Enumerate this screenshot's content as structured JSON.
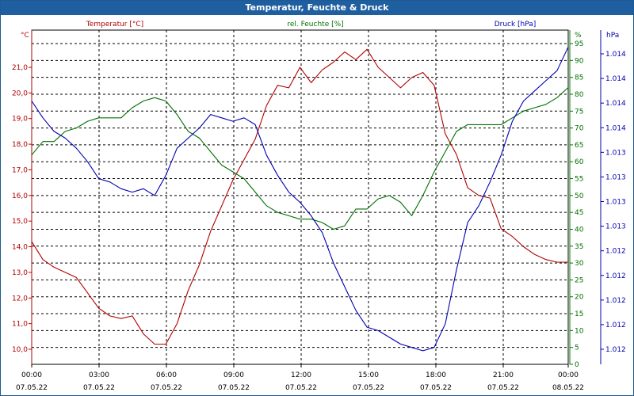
{
  "window": {
    "title": "Temperatur, Feuchte & Druck"
  },
  "chart_data": {
    "type": "line",
    "title": "Temperatur, Feuchte & Druck",
    "colors": {
      "temperature": "#b00000",
      "humidity": "#007000",
      "pressure": "#0000b0",
      "grid": "#000000"
    },
    "grid": true,
    "axes": {
      "left": {
        "unit_label": "°C",
        "header": "Temperatur [°C]",
        "range": [
          9.5,
          22.5
        ],
        "ticks": [
          "10,0",
          "11,0",
          "12,0",
          "13,0",
          "14,0",
          "15,0",
          "16,0",
          "17,0",
          "18,0",
          "19,0",
          "20,0",
          "21,0"
        ]
      },
      "middle": {
        "unit_label": "%",
        "header": "rel. Feuchte [%]",
        "range": [
          0,
          99
        ],
        "ticks": [
          "0",
          "5",
          "10",
          "15",
          "20",
          "25",
          "30",
          "35",
          "40",
          "45",
          "50",
          "55",
          "60",
          "65",
          "70",
          "75",
          "80",
          "85",
          "90",
          "95"
        ]
      },
      "right": {
        "unit_label": "hPa",
        "header": "Druck [hPa]",
        "ticks": [
          "1.012",
          "1.012",
          "1.012",
          "1.012",
          "1.012",
          "1.013",
          "1.013",
          "1.013",
          "1.013",
          "1.014",
          "1.014",
          "1.014",
          "1.014"
        ]
      },
      "x": {
        "ticks": [
          {
            "time": "00:00",
            "date": "07.05.22"
          },
          {
            "time": "03:00",
            "date": "07.05.22"
          },
          {
            "time": "06:00",
            "date": "07.05.22"
          },
          {
            "time": "09:00",
            "date": "07.05.22"
          },
          {
            "time": "12:00",
            "date": "07.05.22"
          },
          {
            "time": "15:00",
            "date": "07.05.22"
          },
          {
            "time": "18:00",
            "date": "07.05.22"
          },
          {
            "time": "21:00",
            "date": "07.05.22"
          },
          {
            "time": "00:00",
            "date": "08.05.22"
          }
        ]
      }
    },
    "x": [
      "00:00",
      "00:30",
      "01:00",
      "01:30",
      "02:00",
      "02:30",
      "03:00",
      "03:30",
      "04:00",
      "04:30",
      "05:00",
      "05:30",
      "06:00",
      "06:30",
      "07:00",
      "07:30",
      "08:00",
      "08:30",
      "09:00",
      "09:30",
      "10:00",
      "10:30",
      "11:00",
      "11:30",
      "12:00",
      "12:30",
      "13:00",
      "13:30",
      "14:00",
      "14:30",
      "15:00",
      "15:30",
      "16:00",
      "16:30",
      "17:00",
      "17:30",
      "18:00",
      "18:30",
      "19:00",
      "19:30",
      "20:00",
      "20:30",
      "21:00",
      "21:30",
      "22:00",
      "22:30",
      "23:00",
      "23:30",
      "24:00"
    ],
    "series": [
      {
        "name": "Temperatur [°C]",
        "axis": "left",
        "values": [
          14.2,
          13.5,
          13.2,
          13.0,
          12.8,
          12.2,
          11.6,
          11.3,
          11.2,
          11.3,
          10.6,
          10.2,
          10.2,
          11.0,
          12.3,
          13.3,
          14.6,
          15.6,
          16.6,
          17.4,
          18.2,
          19.5,
          20.3,
          20.2,
          21.0,
          20.4,
          20.9,
          21.2,
          21.6,
          21.3,
          21.7,
          21.0,
          20.6,
          20.2,
          20.6,
          20.8,
          20.3,
          18.4,
          17.6,
          16.3,
          16.0,
          15.9,
          14.7,
          14.4,
          14.0,
          13.7,
          13.5,
          13.4,
          13.4
        ]
      },
      {
        "name": "rel. Feuchte [%]",
        "axis": "middle",
        "values": [
          62,
          66,
          66,
          69,
          70,
          72,
          73,
          73,
          73,
          76,
          78,
          79,
          78,
          74,
          69,
          67,
          63,
          59,
          57,
          55,
          51,
          47,
          45,
          44,
          43,
          43,
          42,
          40,
          41,
          46,
          46,
          49,
          50,
          48,
          44,
          50,
          57,
          63,
          69,
          71,
          71,
          71,
          71,
          73,
          75,
          76,
          77,
          79,
          82
        ]
      },
      {
        "name": "Druck [hPa]",
        "axis": "middle",
        "values": [
          78,
          73,
          69,
          67,
          64,
          60,
          55,
          54,
          52,
          51,
          52,
          50,
          56,
          64,
          67,
          70,
          74,
          73,
          72,
          73,
          71,
          62,
          56,
          51,
          48,
          44,
          39,
          30,
          23,
          16,
          11,
          10,
          8,
          6,
          5,
          4,
          5,
          12,
          28,
          42,
          47,
          54,
          62,
          72,
          78,
          81,
          84,
          87,
          94
        ]
      }
    ]
  }
}
